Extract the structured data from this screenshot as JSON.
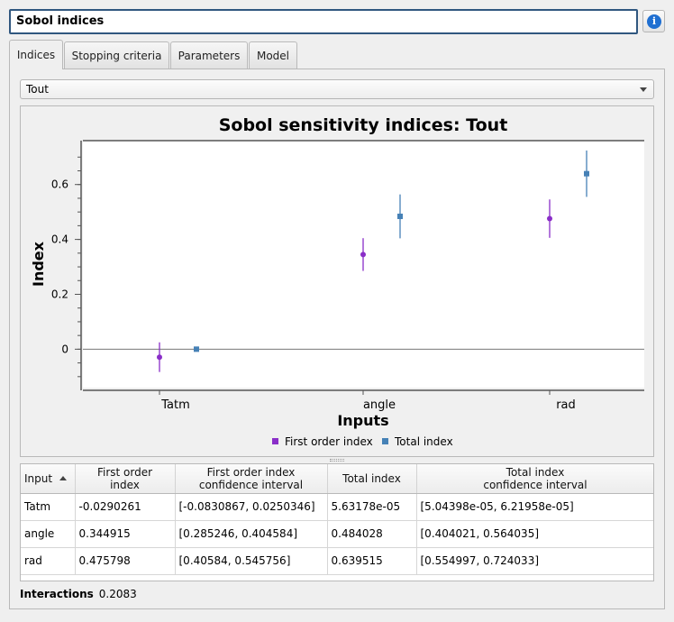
{
  "window": {
    "title": "Sobol indices"
  },
  "tabs": [
    {
      "label": "Indices"
    },
    {
      "label": "Stopping criteria"
    },
    {
      "label": "Parameters"
    },
    {
      "label": "Model"
    }
  ],
  "output_selector": {
    "selected": "Tout"
  },
  "colors": {
    "first_order": "#8a2ec8",
    "total": "#4681b6"
  },
  "chart_data": {
    "type": "scatter",
    "title": "Sobol sensitivity indices: Tout",
    "xlabel": "Inputs",
    "ylabel": "Index",
    "categories": [
      "Tatm",
      "angle",
      "rad"
    ],
    "y_ticks": [
      "0",
      "0.2",
      "0.4",
      "0.6"
    ],
    "y_tick_values": [
      0,
      0.2,
      0.4,
      0.6
    ],
    "ylim": [
      -0.14,
      0.76
    ],
    "grid": false,
    "legend_position": "bottom",
    "series": [
      {
        "name": "First order index",
        "values": [
          -0.0290261,
          0.344915,
          0.475798
        ],
        "ci_low": [
          -0.0830867,
          0.285246,
          0.40584
        ],
        "ci_high": [
          0.0250346,
          0.404584,
          0.545756
        ]
      },
      {
        "name": "Total index",
        "values": [
          5.63178e-05,
          0.484028,
          0.639515
        ],
        "ci_low": [
          5.04398e-05,
          0.404021,
          0.554997
        ],
        "ci_high": [
          6.21958e-05,
          0.564035,
          0.724033
        ]
      }
    ]
  },
  "table": {
    "headers": [
      {
        "line1": "Input",
        "line2": ""
      },
      {
        "line1": "First order",
        "line2": "index"
      },
      {
        "line1": "First order index",
        "line2": "confidence interval"
      },
      {
        "line1": "Total index",
        "line2": ""
      },
      {
        "line1": "Total index",
        "line2": "confidence interval"
      }
    ],
    "rows": [
      [
        "Tatm",
        "-0.0290261",
        "[-0.0830867, 0.0250346]",
        "5.63178e-05",
        "[5.04398e-05, 6.21958e-05]"
      ],
      [
        "angle",
        "0.344915",
        "[0.285246, 0.404584]",
        "0.484028",
        "[0.404021, 0.564035]"
      ],
      [
        "rad",
        "0.475798",
        "[0.40584, 0.545756]",
        "0.639515",
        "[0.554997, 0.724033]"
      ]
    ]
  },
  "interactions": {
    "label": "Interactions",
    "value": "0.2083"
  }
}
